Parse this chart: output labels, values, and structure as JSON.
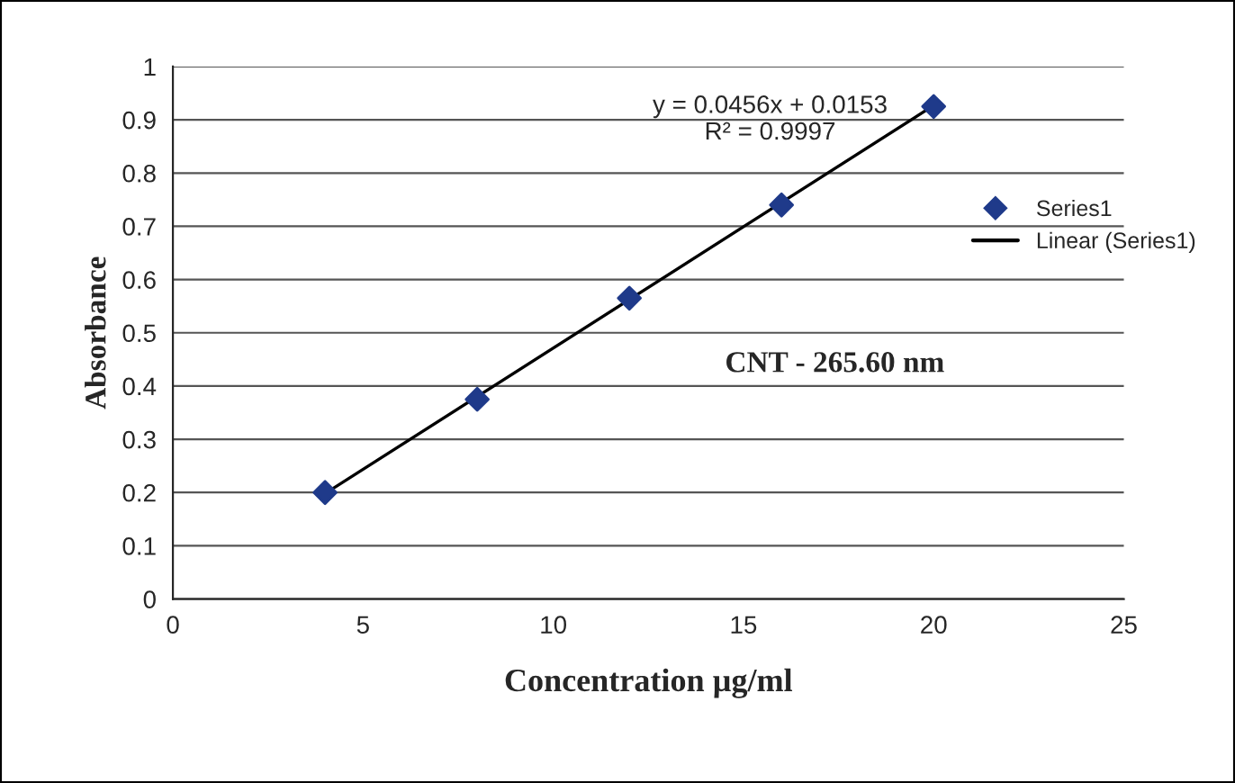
{
  "chart_data": {
    "type": "scatter",
    "xlabel": "Concentration µg/ml",
    "ylabel": "Absorbance",
    "annotations": [
      "y = 0.0456x + 0.0153",
      "R² = 0.9997",
      "CNT - 265.60 nm"
    ],
    "series": [
      {
        "name": "Series1",
        "color": "#1f3a8a",
        "marker": "diamond",
        "x": [
          4,
          8,
          12,
          16,
          20
        ],
        "values": [
          0.2,
          0.375,
          0.565,
          0.74,
          0.925
        ]
      },
      {
        "name": "Linear (Series1)",
        "type": "line",
        "color": "#000000",
        "marker": "none",
        "line_style": "solid",
        "x": [
          4,
          20
        ],
        "values": [
          0.198,
          0.927
        ]
      }
    ],
    "xlim": [
      0,
      25
    ],
    "xticks": [
      0,
      5,
      10,
      15,
      20,
      25
    ],
    "ylim": [
      0,
      1
    ],
    "yticks": [
      0,
      0.1,
      0.2,
      0.3,
      0.4,
      0.5,
      0.6,
      0.7,
      0.8,
      0.9,
      1
    ],
    "grid": "y",
    "legend": "right"
  }
}
